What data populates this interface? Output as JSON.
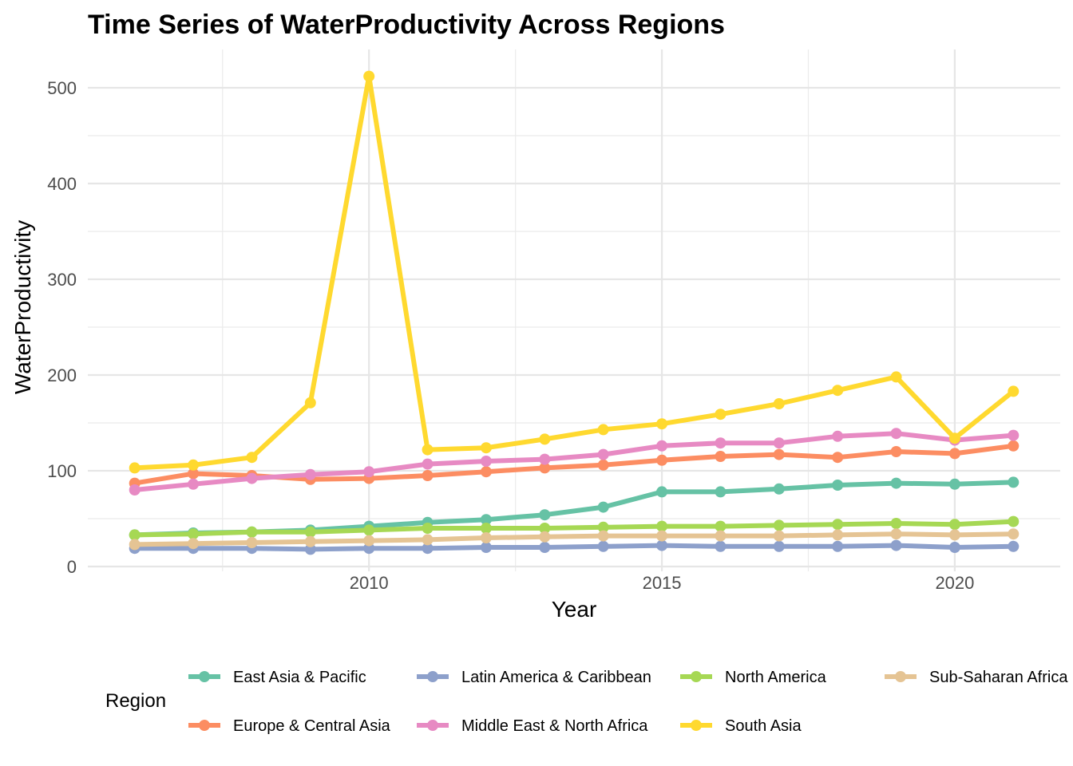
{
  "chart_data": {
    "type": "line",
    "title": "Time Series of WaterProductivity Across Regions",
    "xlabel": "Year",
    "ylabel": "WaterProductivity",
    "x": [
      2006,
      2007,
      2008,
      2009,
      2010,
      2011,
      2012,
      2013,
      2014,
      2015,
      2016,
      2017,
      2018,
      2019,
      2020,
      2021
    ],
    "xlim": [
      2005.2,
      2021.8
    ],
    "ylim": [
      -5,
      540
    ],
    "x_ticks": [
      2010,
      2015,
      2020
    ],
    "x_tick_labels": [
      "2010",
      "2015",
      "2020"
    ],
    "y_ticks": [
      0,
      100,
      200,
      300,
      400,
      500
    ],
    "y_tick_labels": [
      "0",
      "100",
      "200",
      "300",
      "400",
      "500"
    ],
    "grid": true,
    "legend": {
      "title": "Region",
      "position": "bottom"
    },
    "series": [
      {
        "name": "East Asia & Pacific",
        "color": "#66c2a5",
        "values": [
          33,
          35,
          36,
          38,
          42,
          46,
          49,
          54,
          62,
          78,
          78,
          81,
          85,
          87,
          86,
          88
        ]
      },
      {
        "name": "Europe & Central Asia",
        "color": "#fc8d62",
        "values": [
          87,
          97,
          95,
          91,
          92,
          95,
          99,
          103,
          106,
          111,
          115,
          117,
          114,
          120,
          118,
          126
        ]
      },
      {
        "name": "Latin America & Caribbean",
        "color": "#8da0cb",
        "values": [
          19,
          19,
          19,
          18,
          19,
          19,
          20,
          20,
          21,
          22,
          21,
          21,
          21,
          22,
          20,
          21
        ]
      },
      {
        "name": "Middle East & North Africa",
        "color": "#e78ac3",
        "values": [
          80,
          86,
          92,
          96,
          99,
          107,
          110,
          112,
          117,
          126,
          129,
          129,
          136,
          139,
          132,
          137
        ]
      },
      {
        "name": "North America",
        "color": "#a6d854",
        "values": [
          33,
          34,
          36,
          36,
          38,
          40,
          40,
          40,
          41,
          42,
          42,
          43,
          44,
          45,
          44,
          47
        ]
      },
      {
        "name": "South Asia",
        "color": "#ffd92f",
        "values": [
          103,
          106,
          114,
          171,
          512,
          122,
          124,
          133,
          143,
          149,
          159,
          170,
          184,
          198,
          134,
          183
        ]
      },
      {
        "name": "Sub-Saharan Africa",
        "color": "#e5c494",
        "values": [
          23,
          24,
          25,
          26,
          27,
          28,
          30,
          31,
          32,
          32,
          32,
          32,
          33,
          34,
          33,
          34
        ]
      }
    ],
    "legend_order": [
      "East Asia & Pacific",
      "Latin America & Caribbean",
      "North America",
      "Sub-Saharan Africa",
      "Europe & Central Asia",
      "Middle East & North Africa",
      "South Asia"
    ]
  }
}
